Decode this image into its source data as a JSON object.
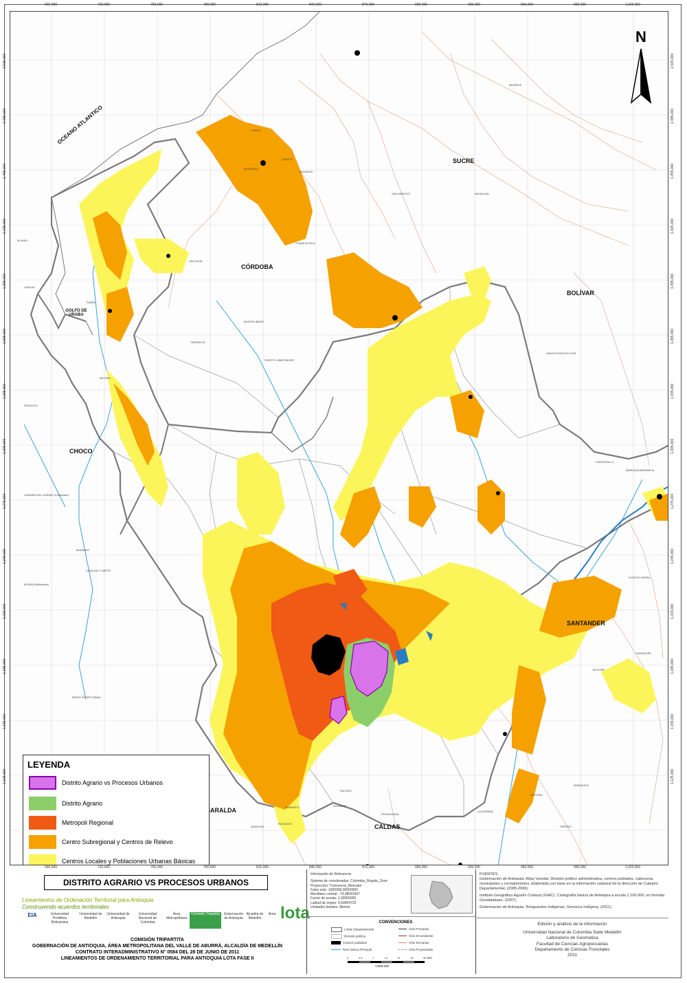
{
  "map": {
    "north_letter": "N",
    "grid_x_labels": [
      "690,000",
      "720,000",
      "750,000",
      "780,000",
      "810,000",
      "840,000",
      "870,000",
      "900,000",
      "930,000",
      "960,000",
      "990,000",
      "1,020,000"
    ],
    "grid_y_labels": [
      "1,515,000",
      "1,485,000",
      "1,455,000",
      "1,425,000",
      "1,395,000",
      "1,365,000",
      "1,335,000",
      "1,305,000",
      "1,275,000",
      "1,245,000",
      "1,215,000",
      "1,185,000",
      "1,155,000",
      "1,125,000"
    ],
    "departments": {
      "sea": "OCEANO ATLANTICO",
      "cordoba": "CÓRDOBA",
      "sucre": "SUCRE",
      "bolivar": "BOLÍVAR",
      "golfo": "GOLFO DE URABA",
      "choco": "CHOCO",
      "santander": "SANTANDER",
      "risaralda": "RISARALDA",
      "caldas": "CALDAS"
    },
    "towns": [
      "MONTERIA",
      "CERETE",
      "LORICA",
      "SAHAGUN",
      "TIERRALTA",
      "VALENCIA",
      "PLANETA RICA",
      "MONTELIBANO",
      "PUERTO LIBERTADOR",
      "SAN MARCOS",
      "MAJAGUAL",
      "MOMPOS",
      "SANTA ROSA DEL SUR",
      "CANTAGALLO",
      "PUERTO PARRA",
      "BOLIVAR",
      "LANDAZURI",
      "LA DORADA",
      "MARIQUITA",
      "VICTORIA",
      "FRESNO",
      "AGUADAS",
      "PACORA",
      "PENSILVANIA",
      "MARMATO",
      "RIOSUCIO",
      "QUINCHIA",
      "MUTATA",
      "TURBO",
      "ACANDI",
      "UNGUIA",
      "RIOSUCIO",
      "MURINDO",
      "VIGIA DEL FUERTE",
      "BOJAYA (Bellavista)",
      "MEDIO ATRATO (Beté)",
      "CARMEN DEL DARIEN (Curbaradó)",
      "BARRANCABERMEJA"
    ]
  },
  "legend": {
    "title": "LEYENDA",
    "items": [
      {
        "label": "Distrito Agrario vs Procesos Urbanos",
        "color": "#d873ea",
        "border": "#8a00b0"
      },
      {
        "label": "Distrito Agrario",
        "color": "#8ccf6a",
        "border": "#8ccf6a"
      },
      {
        "label": "Metropoli Regional",
        "color": "#f05a14",
        "border": "#f05a14"
      },
      {
        "label": "Centro Subregional y Centros de Relevo",
        "color": "#f5a100",
        "border": "#f5a100"
      },
      {
        "label": "Centros Locales y Poblaciones Urbanas Básicas",
        "color": "#fbf55a",
        "border": "#fbf55a"
      }
    ]
  },
  "title_block": {
    "title": "DISTRITO AGRARIO VS PROCESOS URBANOS",
    "subtitle1": "Lineamientos de Ordenación Territorial para Antioquia",
    "subtitle2": "Construyendo acuerdos territoriales",
    "logos": [
      "EIA",
      "Universidad Pontificia Bolivariana",
      "Universidad de Medellín",
      "Universidad de Antioquia",
      "Universidad Nacional de Colombia",
      "Área Metropolitana",
      "Comisión Tripartita",
      "Gobernación de Antioquia",
      "Alcaldía de Medellín",
      "Área",
      "lota"
    ],
    "comision_lines": [
      "COMISIÓN TRIPARTITA",
      "GOBERNACIÓN DE ANTIOQUIA, ÁREA METROPOLITANA DEL VALLE DE ABURRÁ, ALCALDÍA DE MEDELLÍN",
      "CONTRATO INTERADMINISTRATIVO  N° 0584 DEL 28 DE JUNIO DE 2011",
      "LINEAMIENTOS DE ORDENAMIENTO TERRITORIAL PARA ANTIOQUIA LOTA FASE II"
    ]
  },
  "reference_info": {
    "lines": [
      "Información de Referencia:",
      "",
      "Sistema de coordenadas: Colombia_Bogota_Zone",
      "Proyección: Transverse_Mercator",
      "Falso este: 1000000,00000000",
      "Meridiano central: -74,08091667",
      "Factor de escala: 1,00000000",
      "Latitud de origen: 4,59904722",
      "Unidades lineales: Metros"
    ]
  },
  "conventions": {
    "title": "CONVENCIONES",
    "left": [
      "Límite Departamental",
      "División política",
      "Centros poblados",
      "Red Hídrica Principal"
    ],
    "right": [
      "Vías Primarias",
      "Vías Secundarias",
      "Vías Terciarias",
      "Vías Proyectadas"
    ],
    "scale_ticks": [
      "0",
      "3,5",
      "7",
      "14",
      "21",
      "28",
      "35"
    ],
    "scale_unit": "Km",
    "scale_ratio": "1:000.000"
  },
  "sources": {
    "heading": "FUENTES:",
    "lines": [
      "Gobernación de Antioquia. Atlas Veredal. División político administrativa, centros poblados, cabeceras municipales y corregimientos. Elaborada con base en la información catastral de la dirección de Catastro Departamental, (2005-2006).",
      "Instituto  Geográfico Agustín  Codazzi (IGAC). Cartografía básica de Antioquia  a escala 1:100.000, en formato Geodatabase, (2007).",
      "Gobernacion de Antioquia. Resguardos Indígenas, Gerencia Indígena, (2011)."
    ]
  },
  "credits": {
    "lines": [
      "Edición y análisis de la información",
      "",
      "Universidad Nacional de Colombia Sede Medellín",
      "Laboratorio de Geomatica",
      "Facultad de Ciencias Agropecuarias",
      "Departamento de Ciencias Forestales",
      "2011"
    ]
  }
}
